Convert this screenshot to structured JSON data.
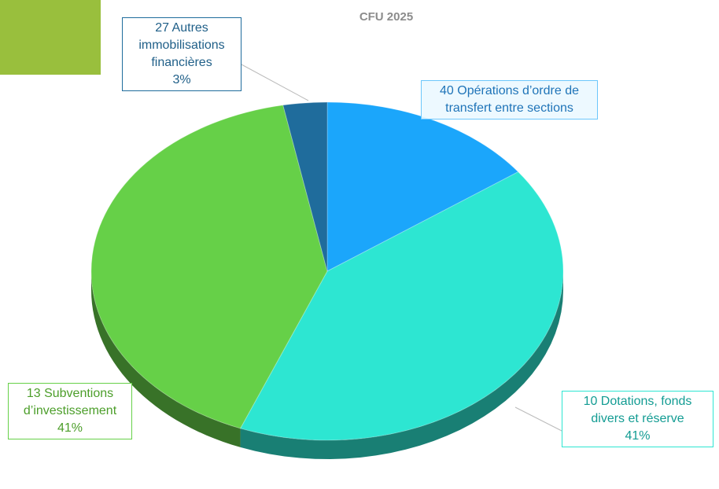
{
  "chart_data": {
    "type": "pie",
    "title": "CFU 2025",
    "categories": [
      "40 Opérations d’ordre de transfert entre sections",
      "10 Dotations, fonds divers et réserve",
      "13 Subventions d’investissement",
      "27 Autres immobilisations financières"
    ],
    "values": [
      15,
      41,
      41,
      3
    ],
    "value_labels": [
      null,
      "41%",
      "41%",
      "3%"
    ],
    "colors": [
      "#1ba6fb",
      "#2de6d2",
      "#66d048",
      "#1f6c9c"
    ]
  }
}
